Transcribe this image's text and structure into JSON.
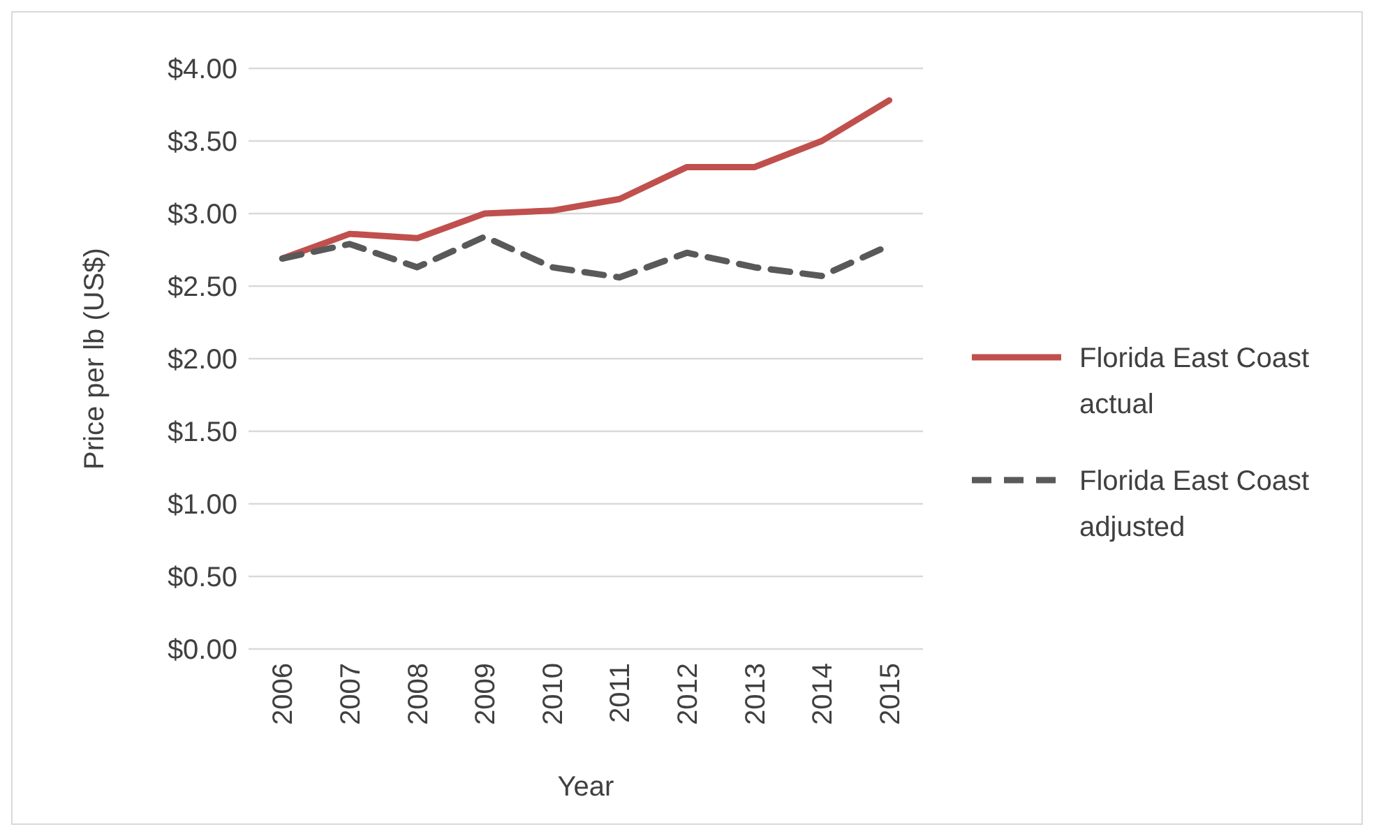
{
  "chart_data": {
    "type": "line",
    "xlabel": "Year",
    "ylabel": "Price per lb (US$)",
    "categories": [
      "2006",
      "2007",
      "2008",
      "2009",
      "2010",
      "2011",
      "2012",
      "2013",
      "2014",
      "2015"
    ],
    "series": [
      {
        "name": "Florida East Coast actual",
        "color": "#c0504d",
        "line_style": "solid",
        "values": [
          2.69,
          2.86,
          2.83,
          3.0,
          3.02,
          3.1,
          3.32,
          3.32,
          3.5,
          3.78
        ]
      },
      {
        "name": "Florida East Coast adjusted",
        "color": "#595959",
        "line_style": "dashed",
        "values": [
          2.69,
          2.79,
          2.63,
          2.84,
          2.63,
          2.56,
          2.73,
          2.63,
          2.57,
          2.78
        ]
      }
    ],
    "ylim": [
      0,
      4
    ],
    "yticks": [
      {
        "value": 0,
        "label": "$0.00"
      },
      {
        "value": 0.5,
        "label": "$0.50"
      },
      {
        "value": 1,
        "label": "$1.00"
      },
      {
        "value": 1.5,
        "label": "$1.50"
      },
      {
        "value": 2,
        "label": "$2.00"
      },
      {
        "value": 2.5,
        "label": "$2.50"
      },
      {
        "value": 3,
        "label": "$3.00"
      },
      {
        "value": 3.5,
        "label": "$3.50"
      },
      {
        "value": 4,
        "label": "$4.00"
      }
    ],
    "grid": "y",
    "legend": "right"
  }
}
